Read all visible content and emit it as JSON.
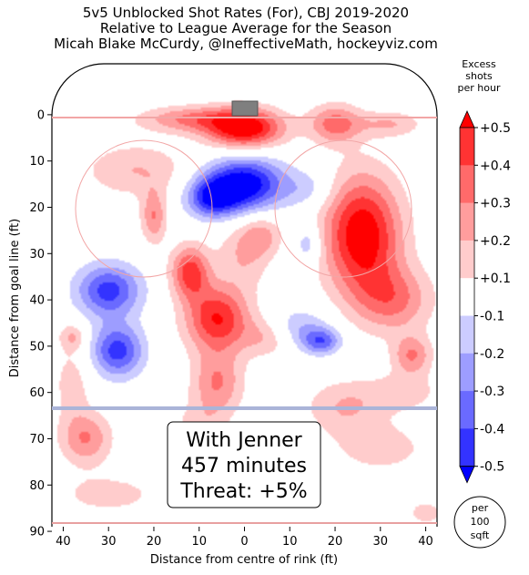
{
  "chart_data": {
    "type": "heatmap",
    "title_lines": [
      "5v5 Unblocked Shot Rates (For), CBJ 2019-2020",
      "Relative to League Average for the Season",
      "Micah Blake McCurdy, @IneffectiveMath, hockeyviz.com"
    ],
    "xlabel": "Distance from centre of rink (ft)",
    "ylabel": "Distance from goal line (ft)",
    "x_ticks": [
      40,
      30,
      20,
      10,
      0,
      10,
      20,
      30,
      40
    ],
    "y_ticks": [
      0,
      10,
      20,
      30,
      40,
      50,
      60,
      70,
      80,
      90
    ],
    "xlim": [
      -42.5,
      42.5
    ],
    "ylim": [
      -11,
      89
    ],
    "annotation_lines": [
      "With Jenner",
      "457 minutes",
      "Threat: +5%"
    ],
    "colorbar": {
      "title_lines": [
        "Excess",
        "shots",
        "per hour"
      ],
      "tick_labels": [
        "+0.5",
        "+0.4",
        "+0.3",
        "+0.2",
        "+0.1",
        "-0.1",
        "-0.2",
        "-0.3",
        "-0.4",
        "-0.5"
      ],
      "levels": [
        0.5,
        0.4,
        0.3,
        0.2,
        0.1,
        -0.1,
        -0.2,
        -0.3,
        -0.4,
        -0.5
      ],
      "colors": [
        "#ff0000",
        "#ff3333",
        "#ff6a6a",
        "#ff9d9d",
        "#ffcccc",
        "#ffffff",
        "#ccccff",
        "#9d9dff",
        "#6a6aff",
        "#3333ff",
        "#0000ff"
      ]
    },
    "unit_badge_lines": [
      "per",
      "100",
      "sqft"
    ],
    "hotspots": [
      {
        "x": 0,
        "y": 3,
        "value": 0.6,
        "sx": 6,
        "sy": 3
      },
      {
        "x": -12,
        "y": 1,
        "value": 0.3,
        "sx": 8,
        "sy": 2
      },
      {
        "x": 20,
        "y": 2,
        "value": 0.35,
        "sx": 4,
        "sy": 3
      },
      {
        "x": 32,
        "y": 2,
        "value": 0.2,
        "sx": 5,
        "sy": 2
      },
      {
        "x": 0,
        "y": 15,
        "value": -0.6,
        "sx": 6,
        "sy": 4
      },
      {
        "x": -7,
        "y": 18,
        "value": -0.45,
        "sx": 4,
        "sy": 3
      },
      {
        "x": -24,
        "y": 12,
        "value": 0.2,
        "sx": 8,
        "sy": 4
      },
      {
        "x": -20,
        "y": 22,
        "value": 0.3,
        "sx": 2,
        "sy": 4
      },
      {
        "x": 26,
        "y": 26,
        "value": 0.6,
        "sx": 6,
        "sy": 9
      },
      {
        "x": 14,
        "y": 16,
        "value": -0.15,
        "sx": 4,
        "sy": 3
      },
      {
        "x": 14,
        "y": 28,
        "value": -0.2,
        "sx": 2,
        "sy": 3
      },
      {
        "x": -30,
        "y": 38,
        "value": -0.45,
        "sx": 5,
        "sy": 4
      },
      {
        "x": -28,
        "y": 51,
        "value": -0.45,
        "sx": 4,
        "sy": 4
      },
      {
        "x": -12,
        "y": 34,
        "value": 0.45,
        "sx": 3,
        "sy": 4
      },
      {
        "x": -6,
        "y": 44,
        "value": 0.5,
        "sx": 5,
        "sy": 5
      },
      {
        "x": 0,
        "y": 30,
        "value": 0.2,
        "sx": 4,
        "sy": 5
      },
      {
        "x": 4,
        "y": 26,
        "value": 0.2,
        "sx": 3,
        "sy": 3
      },
      {
        "x": 5,
        "y": 48,
        "value": 0.2,
        "sx": 4,
        "sy": 3
      },
      {
        "x": 12,
        "y": 46,
        "value": -0.2,
        "sx": 5,
        "sy": 3
      },
      {
        "x": 17,
        "y": 49,
        "value": -0.35,
        "sx": 3,
        "sy": 2
      },
      {
        "x": 33,
        "y": 40,
        "value": 0.3,
        "sx": 6,
        "sy": 5
      },
      {
        "x": 37,
        "y": 52,
        "value": 0.3,
        "sx": 3,
        "sy": 3
      },
      {
        "x": -6,
        "y": 58,
        "value": 0.3,
        "sx": 4,
        "sy": 5
      },
      {
        "x": -10,
        "y": 68,
        "value": 0.15,
        "sx": 4,
        "sy": 4
      },
      {
        "x": -38,
        "y": 58,
        "value": 0.15,
        "sx": 3,
        "sy": 6
      },
      {
        "x": -35,
        "y": 70,
        "value": 0.3,
        "sx": 4,
        "sy": 4
      },
      {
        "x": -38,
        "y": 48,
        "value": 0.2,
        "sx": 2,
        "sy": 2
      },
      {
        "x": 22,
        "y": 63,
        "value": 0.2,
        "sx": 6,
        "sy": 4
      },
      {
        "x": 35,
        "y": 60,
        "value": 0.15,
        "sx": 6,
        "sy": 3
      },
      {
        "x": 30,
        "y": 72,
        "value": 0.15,
        "sx": 8,
        "sy": 4
      },
      {
        "x": 40,
        "y": 86,
        "value": 0.15,
        "sx": 3,
        "sy": 2
      },
      {
        "x": -30,
        "y": 82,
        "value": 0.15,
        "sx": 8,
        "sy": 3
      }
    ]
  }
}
